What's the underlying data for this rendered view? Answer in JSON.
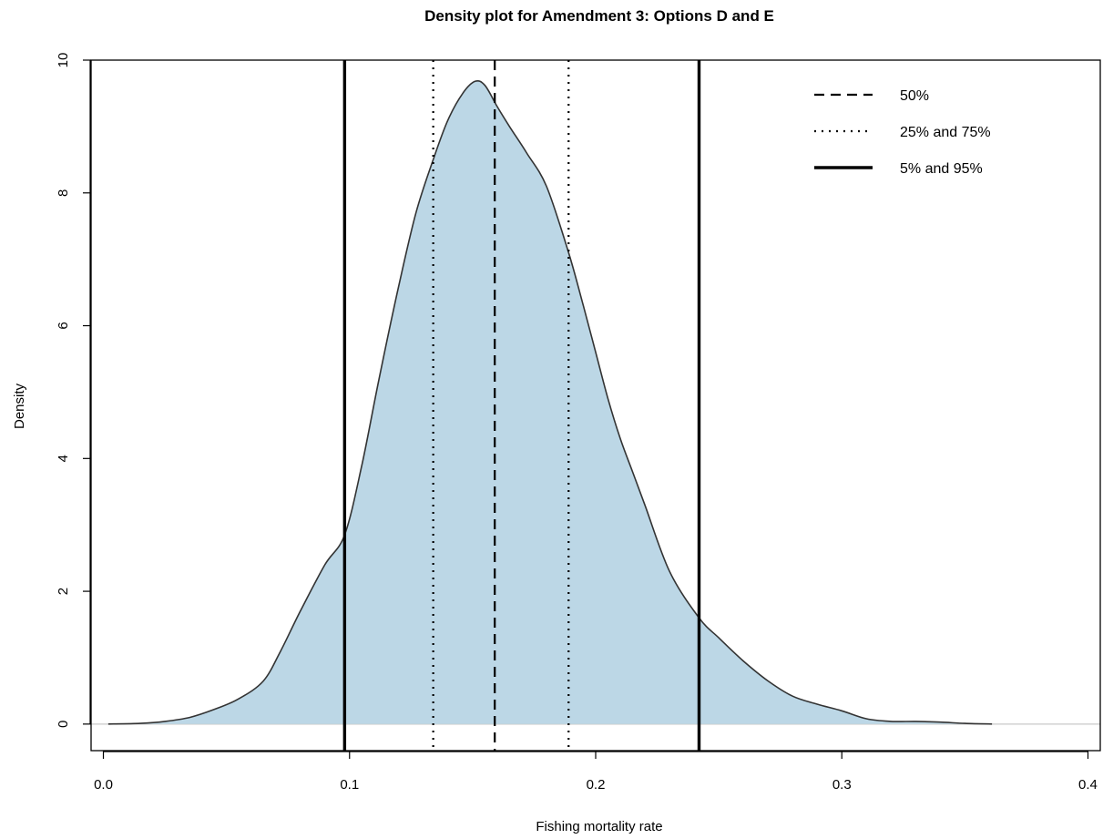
{
  "chart_data": {
    "type": "area",
    "title": "Density plot for Amendment 3: Options D and E",
    "xlabel": "Fishing mortality rate",
    "ylabel": "Density",
    "xlim": [
      -0.005,
      0.405
    ],
    "ylim": [
      -0.4,
      10
    ],
    "x_ticks": [
      0.0,
      0.1,
      0.2,
      0.3,
      0.4
    ],
    "x_tick_labels": [
      "0.0",
      "0.1",
      "0.2",
      "0.3",
      "0.4"
    ],
    "y_ticks": [
      0,
      2,
      4,
      6,
      8,
      10
    ],
    "y_tick_labels": [
      "0",
      "2",
      "4",
      "6",
      "8",
      "10"
    ],
    "fill_color": "#bcd7e6",
    "line_color": "#333333",
    "grid": false,
    "legend_position": "top-right",
    "density": {
      "x": [
        0.002,
        0.015,
        0.025,
        0.035,
        0.045,
        0.055,
        0.065,
        0.072,
        0.08,
        0.09,
        0.098,
        0.105,
        0.112,
        0.12,
        0.127,
        0.134,
        0.14,
        0.146,
        0.151,
        0.155,
        0.16,
        0.165,
        0.172,
        0.18,
        0.189,
        0.195,
        0.2,
        0.205,
        0.21,
        0.215,
        0.22,
        0.23,
        0.242,
        0.25,
        0.26,
        0.27,
        0.28,
        0.29,
        0.3,
        0.31,
        0.32,
        0.33,
        0.34,
        0.35,
        0.361
      ],
      "y": [
        0.0,
        0.01,
        0.04,
        0.1,
        0.22,
        0.38,
        0.65,
        1.1,
        1.7,
        2.4,
        2.85,
        3.9,
        5.2,
        6.6,
        7.7,
        8.5,
        9.1,
        9.5,
        9.68,
        9.62,
        9.3,
        9.0,
        8.6,
        8.1,
        7.1,
        6.3,
        5.6,
        4.9,
        4.3,
        3.8,
        3.3,
        2.3,
        1.6,
        1.3,
        0.95,
        0.65,
        0.42,
        0.3,
        0.2,
        0.08,
        0.04,
        0.04,
        0.03,
        0.01,
        0.0
      ]
    },
    "vlines": [
      {
        "x": 0.098,
        "style": "solid",
        "series": "5% and 95%"
      },
      {
        "x": 0.242,
        "style": "solid",
        "series": "5% and 95%"
      },
      {
        "x": 0.134,
        "style": "dotted",
        "series": "25% and 75%"
      },
      {
        "x": 0.189,
        "style": "dotted",
        "series": "25% and 75%"
      },
      {
        "x": 0.159,
        "style": "dashed",
        "series": "50%"
      }
    ],
    "legend": [
      {
        "label": "50%",
        "style": "dashed"
      },
      {
        "label": "25% and 75%",
        "style": "dotted"
      },
      {
        "label": "5% and 95%",
        "style": "solid"
      }
    ]
  }
}
